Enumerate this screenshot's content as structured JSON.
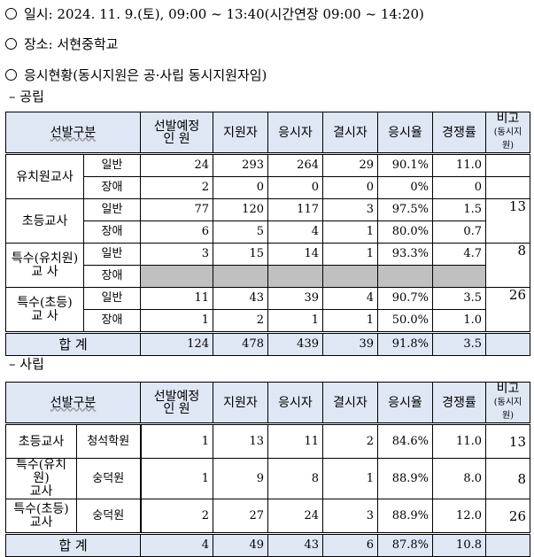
{
  "lines": {
    "date": "일시: 2024. 11. 9.(토), 09:00 ~ 13:40(시간연장 09:00 ~ 14:20)",
    "place": "장소: 서현중학교",
    "status": "응시현황(동시지원은 공·사립 동시지원자임)"
  },
  "public": {
    "label": "– 공립",
    "headers": {
      "category": "선발구분",
      "planned_1": "선발예정",
      "planned_2": "인    원",
      "applicants": "지원자",
      "examinees": "응시자",
      "absentees": "결시자",
      "rate": "응시율",
      "competition": "경쟁률",
      "note": "비고",
      "note_sub": "(동시지원)"
    },
    "rows": [
      {
        "group": "유치원교사",
        "type": "일반",
        "planned": "24",
        "applicants": "293",
        "examinees": "264",
        "absentees": "29",
        "rate": "90.1%",
        "competition": "11.0",
        "note": ""
      },
      {
        "group": "",
        "type": "장애",
        "planned": "2",
        "applicants": "0",
        "examinees": "0",
        "absentees": "0",
        "rate": "0%",
        "competition": "0",
        "note": ""
      },
      {
        "group": "초등교사",
        "type": "일반",
        "planned": "77",
        "applicants": "120",
        "examinees": "117",
        "absentees": "3",
        "rate": "97.5%",
        "competition": "1.5",
        "note": "13"
      },
      {
        "group": "",
        "type": "장애",
        "planned": "6",
        "applicants": "5",
        "examinees": "4",
        "absentees": "1",
        "rate": "80.0%",
        "competition": "0.7",
        "note": ""
      },
      {
        "group": "특수(유치원)",
        "group2": "교  사",
        "type": "일반",
        "planned": "3",
        "applicants": "15",
        "examinees": "14",
        "absentees": "1",
        "rate": "93.3%",
        "competition": "4.7",
        "note": "8"
      },
      {
        "group": "",
        "type": "장애",
        "planned": "",
        "applicants": "",
        "examinees": "",
        "absentees": "",
        "rate": "",
        "competition": "",
        "note": ""
      },
      {
        "group": "특수(초등)",
        "group2": "교  사",
        "type": "일반",
        "planned": "11",
        "applicants": "43",
        "examinees": "39",
        "absentees": "4",
        "rate": "90.7%",
        "competition": "3.5",
        "note": "26"
      },
      {
        "group": "",
        "type": "장애",
        "planned": "1",
        "applicants": "2",
        "examinees": "1",
        "absentees": "1",
        "rate": "50.0%",
        "competition": "1.0",
        "note": ""
      }
    ],
    "total": {
      "label": "합  계",
      "planned": "124",
      "applicants": "478",
      "examinees": "439",
      "absentees": "39",
      "rate": "91.8%",
      "competition": "3.5",
      "note": ""
    }
  },
  "private": {
    "label": "– 사립",
    "headers": {
      "category": "선발구분",
      "planned_1": "선발예정",
      "planned_2": "인    원",
      "applicants": "지원자",
      "examinees": "응시자",
      "absentees": "결시자",
      "rate": "응시율",
      "competition": "경쟁률",
      "note": "비고",
      "note_sub": "(동시지원)"
    },
    "rows": [
      {
        "group": "초등교사",
        "school": "청석학원",
        "planned": "1",
        "applicants": "13",
        "examinees": "11",
        "absentees": "2",
        "rate": "84.6%",
        "competition": "11.0",
        "note": "13"
      },
      {
        "group": "특수(유치원)",
        "group2": "교사",
        "school": "숭덕원",
        "planned": "1",
        "applicants": "9",
        "examinees": "8",
        "absentees": "1",
        "rate": "88.9%",
        "competition": "8.0",
        "note": "8"
      },
      {
        "group": "특수(초등)",
        "group2": "교사",
        "school": "숭덕원",
        "planned": "2",
        "applicants": "27",
        "examinees": "24",
        "absentees": "3",
        "rate": "88.9%",
        "competition": "12.0",
        "note": "26"
      }
    ],
    "total": {
      "label": "합  계",
      "planned": "4",
      "applicants": "49",
      "examinees": "43",
      "absentees": "6",
      "rate": "87.8%",
      "competition": "10.8",
      "note": ""
    }
  }
}
